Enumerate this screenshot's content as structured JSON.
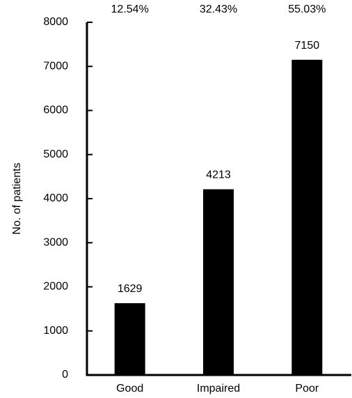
{
  "chart_data": {
    "type": "bar",
    "y_label": "No. of patients",
    "categories": [
      "Good",
      "Impaired",
      "Poor"
    ],
    "values": [
      1629,
      4213,
      7150
    ],
    "annotations": [
      "12.54%",
      "32.43%",
      "55.03%"
    ],
    "color": "#000000",
    "ylim": [
      0,
      8000
    ],
    "yticks": [
      0,
      1000,
      2000,
      3000,
      4000,
      5000,
      6000,
      7000,
      8000
    ],
    "grid": false
  }
}
